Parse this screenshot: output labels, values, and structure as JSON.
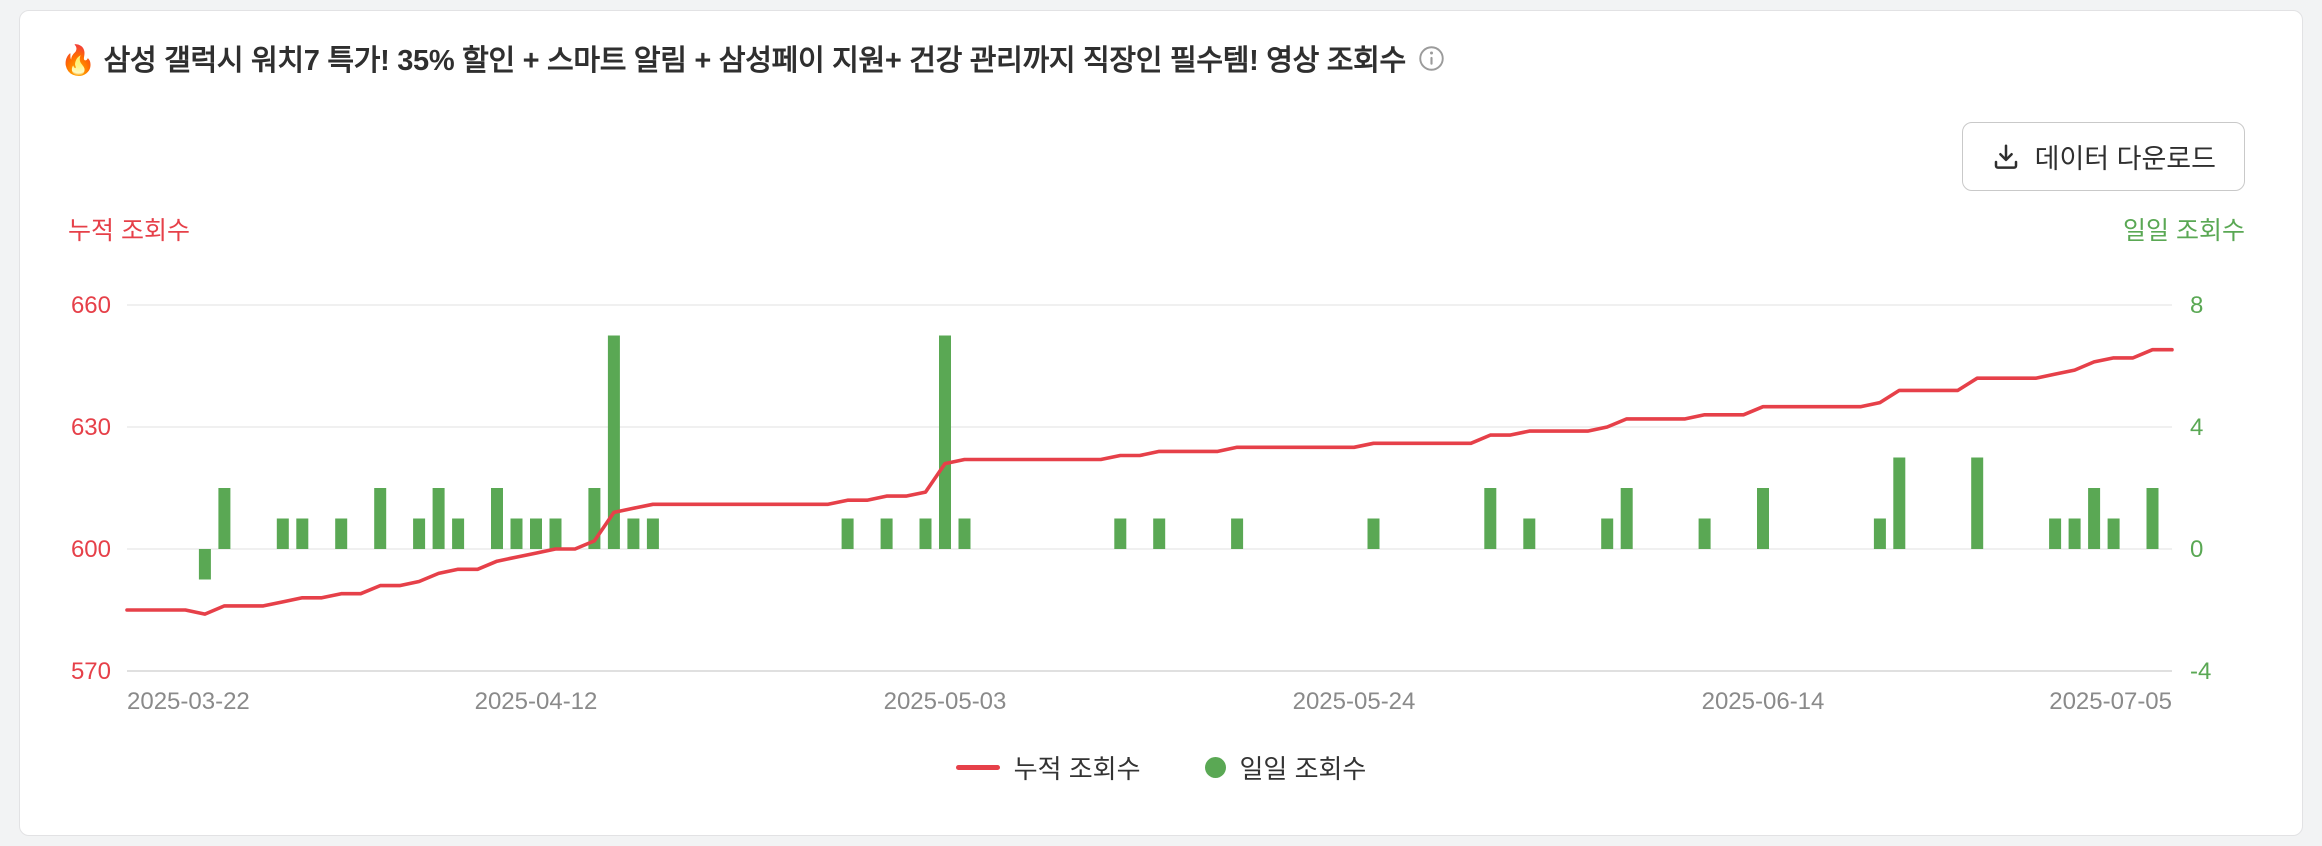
{
  "header": {
    "info_icon": "info-circle-icon"
  },
  "toolbar": {
    "download_label": "데이터 다운로드",
    "download_icon": "download-tray-icon"
  },
  "chart_data": {
    "type": "combo",
    "title": "🔥 삼성 갤럭시 워치7 특가! 35% 할인 + 스마트 알림 + 삼성페이 지원+ 건강 관리까지 직장인 필수템! 영상 조회수",
    "n_points": 106,
    "x_range": [
      "2025-03-22",
      "2025-07-05"
    ],
    "x_tick_labels": [
      "2025-03-22",
      "2025-04-12",
      "2025-05-03",
      "2025-05-24",
      "2025-06-14",
      "2025-07-05"
    ],
    "x_tick_indices": [
      0,
      21,
      42,
      63,
      84,
      105
    ],
    "axis_text_color": "#8a8a8a",
    "grid": true,
    "legend_position": "bottom",
    "y_left": {
      "title": "누적 조회수",
      "min": 570,
      "max": 660,
      "ticks": [
        570,
        600,
        630,
        660
      ],
      "color": "#e64049"
    },
    "y_right": {
      "title": "일일 조회수",
      "min": -4,
      "max": 8,
      "ticks": [
        -4,
        0,
        4,
        8
      ],
      "color": "#5aa854"
    },
    "series": [
      {
        "name": "누적 조회수",
        "type": "line",
        "axis": "left",
        "color": "#e64049",
        "values": [
          585,
          585,
          585,
          585,
          584,
          586,
          586,
          586,
          587,
          588,
          588,
          589,
          589,
          591,
          591,
          592,
          594,
          595,
          595,
          597,
          598,
          599,
          600,
          600,
          602,
          609,
          610,
          611,
          611,
          611,
          611,
          611,
          611,
          611,
          611,
          611,
          611,
          612,
          612,
          613,
          613,
          614,
          621,
          622,
          622,
          622,
          622,
          622,
          622,
          622,
          622,
          623,
          623,
          624,
          624,
          624,
          624,
          625,
          625,
          625,
          625,
          625,
          625,
          625,
          626,
          626,
          626,
          626,
          626,
          626,
          628,
          628,
          629,
          629,
          629,
          629,
          630,
          632,
          632,
          632,
          632,
          633,
          633,
          633,
          635,
          635,
          635,
          635,
          635,
          635,
          636,
          639,
          639,
          639,
          639,
          642,
          642,
          642,
          642,
          643,
          644,
          646,
          647,
          647,
          649,
          649
        ]
      },
      {
        "name": "일일 조회수",
        "type": "bar",
        "axis": "right",
        "color": "#5aa854",
        "values": [
          0,
          0,
          0,
          0,
          -1,
          2,
          0,
          0,
          1,
          1,
          0,
          1,
          0,
          2,
          0,
          1,
          2,
          1,
          0,
          2,
          1,
          1,
          1,
          0,
          2,
          7,
          1,
          1,
          0,
          0,
          0,
          0,
          0,
          0,
          0,
          0,
          0,
          1,
          0,
          1,
          0,
          1,
          7,
          1,
          0,
          0,
          0,
          0,
          0,
          0,
          0,
          1,
          0,
          1,
          0,
          0,
          0,
          1,
          0,
          0,
          0,
          0,
          0,
          0,
          1,
          0,
          0,
          0,
          0,
          0,
          2,
          0,
          1,
          0,
          0,
          0,
          1,
          2,
          0,
          0,
          0,
          1,
          0,
          0,
          2,
          0,
          0,
          0,
          0,
          0,
          1,
          3,
          0,
          0,
          0,
          3,
          0,
          0,
          0,
          1,
          1,
          2,
          1,
          0,
          2,
          0
        ]
      }
    ]
  }
}
